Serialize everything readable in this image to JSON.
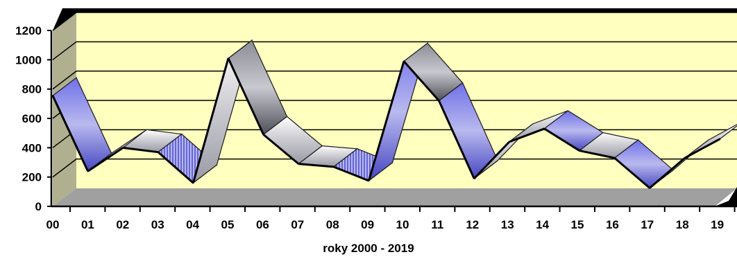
{
  "chart_data": {
    "type": "line",
    "style": "3d-ribbon",
    "title": "",
    "xlabel": "roky 2000 - 2019",
    "ylabel": "",
    "categories": [
      "00",
      "01",
      "02",
      "03",
      "04",
      "05",
      "06",
      "07",
      "08",
      "09",
      "10",
      "11",
      "12",
      "13",
      "14",
      "15",
      "16",
      "17",
      "18",
      "19"
    ],
    "values": [
      755,
      240,
      400,
      370,
      160,
      1010,
      490,
      290,
      270,
      175,
      990,
      720,
      190,
      440,
      530,
      380,
      330,
      125,
      330,
      460
    ],
    "ylim": [
      0,
      1200
    ],
    "yticks": [
      0,
      200,
      400,
      600,
      800,
      1000,
      1200
    ],
    "grid": true,
    "legend": "none",
    "colors": {
      "ribbon_light": "#d8d8dc",
      "ribbon_blue": "#5a5ad2",
      "ribbon_dark": "#4a4a52",
      "wall_back": "#ffffc0",
      "wall_side": "#b0b090",
      "floor": "#a0a0a0",
      "frame": "#000000"
    }
  }
}
